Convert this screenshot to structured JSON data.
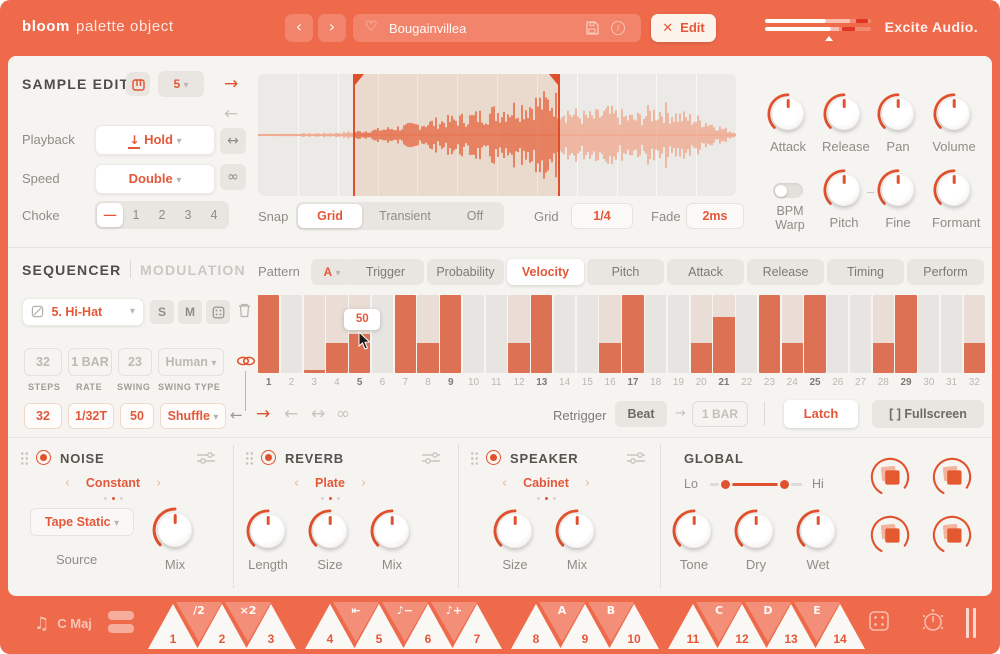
{
  "colors": {
    "topbar": "#ef6a4b",
    "accent": "#e4583a",
    "arc": "#e0512e",
    "step_fill": "#dd7153",
    "step_bg_on": "#eaddd5",
    "step_bg_off": "#e7e4e1",
    "panel": "#f6f4f1"
  },
  "titlebar": {
    "brand_bold": "bloom",
    "brand_rest": "palette object",
    "prev": "‹",
    "next": "›",
    "preset_name": "Bougainvillea",
    "edit_label": "Edit",
    "edit_x": "✕",
    "company": "Excite Audio.",
    "meter": {
      "rows": [
        {
          "fill": 58,
          "soft": 22,
          "clip_at": 86,
          "clip_w": 11
        },
        {
          "fill": 62,
          "soft": 8,
          "clip_at": 73,
          "clip_w": 12
        }
      ],
      "marker_at": 57
    }
  },
  "sample_edit": {
    "title": "SAMPLE EDIT",
    "slot_value": "5",
    "playback_label": "Playback",
    "playback_value": "Hold",
    "speed_label": "Speed",
    "speed_value": "Double",
    "choke_label": "Choke",
    "choke_options": [
      "—",
      "1",
      "2",
      "3",
      "4"
    ],
    "choke_selected": "—",
    "arrow_right": "→",
    "arrow_left": "←",
    "arrow_both": "↔",
    "infinity": "∞",
    "snap_label": "Snap",
    "snap_options": [
      "Grid",
      "Transient",
      "Off"
    ],
    "snap_selected": "Grid",
    "grid_label": "Grid",
    "grid_value": "1/4",
    "fade_label": "Fade",
    "fade_value": "2ms",
    "knobs_row1": [
      "Attack",
      "Release",
      "Pan",
      "Volume"
    ],
    "bpm_warp_label": "BPM Warp",
    "knobs_row2": [
      "Pitch",
      "Fine",
      "Formant"
    ],
    "selection": {
      "start": 0.2,
      "end": 0.63
    }
  },
  "sequencer": {
    "tab_active": "SEQUENCER",
    "tab_inactive": "MODULATION",
    "pattern_label": "Pattern",
    "pattern_value": "A",
    "lane_tabs": [
      "Trigger",
      "Probability",
      "Velocity",
      "Pitch",
      "Attack",
      "Release",
      "Timing",
      "Perform"
    ],
    "lane_selected": "Velocity",
    "track_value": "5. Hi-Hat",
    "solo_label": "S",
    "mute_label": "M",
    "params_top": {
      "steps": "32",
      "rate": "1 BAR",
      "swing": "23",
      "swing_type": "Human"
    },
    "param_labels": [
      "STEPS",
      "RATE",
      "SWING",
      "SWING TYPE"
    ],
    "params_bottom": {
      "steps": "32",
      "rate": "1/32T",
      "swing": "50",
      "swing_type": "Shuffle"
    },
    "tooltip_value": "50",
    "tooltip_step": 5,
    "transport_arrows": [
      "→",
      "←",
      "↔",
      "∞"
    ],
    "retrigger_label": "Retrigger",
    "retrigger_value": "Beat",
    "retrigger_arrow": "→",
    "retrigger_rate": "1 BAR",
    "latch_label": "Latch",
    "fullscreen_label": "[ ] Fullscreen",
    "steps": [
      {
        "on": true,
        "v": 100
      },
      {
        "on": false,
        "v": 0
      },
      {
        "on": true,
        "v": 4
      },
      {
        "on": true,
        "v": 38
      },
      {
        "on": true,
        "v": 50
      },
      {
        "on": false,
        "v": 0
      },
      {
        "on": true,
        "v": 100
      },
      {
        "on": true,
        "v": 38
      },
      {
        "on": true,
        "v": 100
      },
      {
        "on": false,
        "v": 0
      },
      {
        "on": false,
        "v": 0
      },
      {
        "on": true,
        "v": 38
      },
      {
        "on": true,
        "v": 100
      },
      {
        "on": false,
        "v": 0
      },
      {
        "on": false,
        "v": 0
      },
      {
        "on": true,
        "v": 38
      },
      {
        "on": true,
        "v": 100
      },
      {
        "on": false,
        "v": 0
      },
      {
        "on": false,
        "v": 0
      },
      {
        "on": true,
        "v": 38
      },
      {
        "on": true,
        "v": 72
      },
      {
        "on": false,
        "v": 0
      },
      {
        "on": true,
        "v": 100
      },
      {
        "on": true,
        "v": 38
      },
      {
        "on": true,
        "v": 100
      },
      {
        "on": false,
        "v": 0
      },
      {
        "on": false,
        "v": 0
      },
      {
        "on": true,
        "v": 38
      },
      {
        "on": true,
        "v": 100
      },
      {
        "on": false,
        "v": 0
      },
      {
        "on": false,
        "v": 0
      },
      {
        "on": true,
        "v": 38
      }
    ]
  },
  "effects": {
    "noise": {
      "title": "NOISE",
      "mode": "Constant",
      "source_value": "Tape Static",
      "source_label": "Source",
      "knob_labels": [
        "Mix"
      ]
    },
    "reverb": {
      "title": "REVERB",
      "mode": "Plate",
      "knob_labels": [
        "Length",
        "Size",
        "Mix"
      ]
    },
    "speaker": {
      "title": "SPEAKER",
      "mode": "Cabinet",
      "knob_labels": [
        "Size",
        "Mix"
      ]
    },
    "global": {
      "title": "GLOBAL",
      "lo_label": "Lo",
      "hi_label": "Hi",
      "knob_labels": [
        "Tone",
        "Dry",
        "Wet"
      ],
      "range": {
        "lo": 0.12,
        "hi": 0.86
      }
    }
  },
  "bottombar": {
    "key_label": "C Maj",
    "note_icon": "♫",
    "pads": [
      {
        "num": "1",
        "mod": "/2"
      },
      {
        "num": "2",
        "mod": "×2"
      },
      {
        "num": "3",
        "gap": true
      },
      {
        "num": "4",
        "mod": "⇤"
      },
      {
        "num": "5",
        "mod": "♪−"
      },
      {
        "num": "6",
        "mod": "♪+"
      },
      {
        "num": "7",
        "gap": true
      },
      {
        "num": "8",
        "mod": "A"
      },
      {
        "num": "9",
        "mod": "B"
      },
      {
        "num": "10",
        "gap": true
      },
      {
        "num": "11",
        "mod": "C"
      },
      {
        "num": "12",
        "mod": "D"
      },
      {
        "num": "13",
        "mod": "E"
      },
      {
        "num": "14"
      }
    ]
  }
}
